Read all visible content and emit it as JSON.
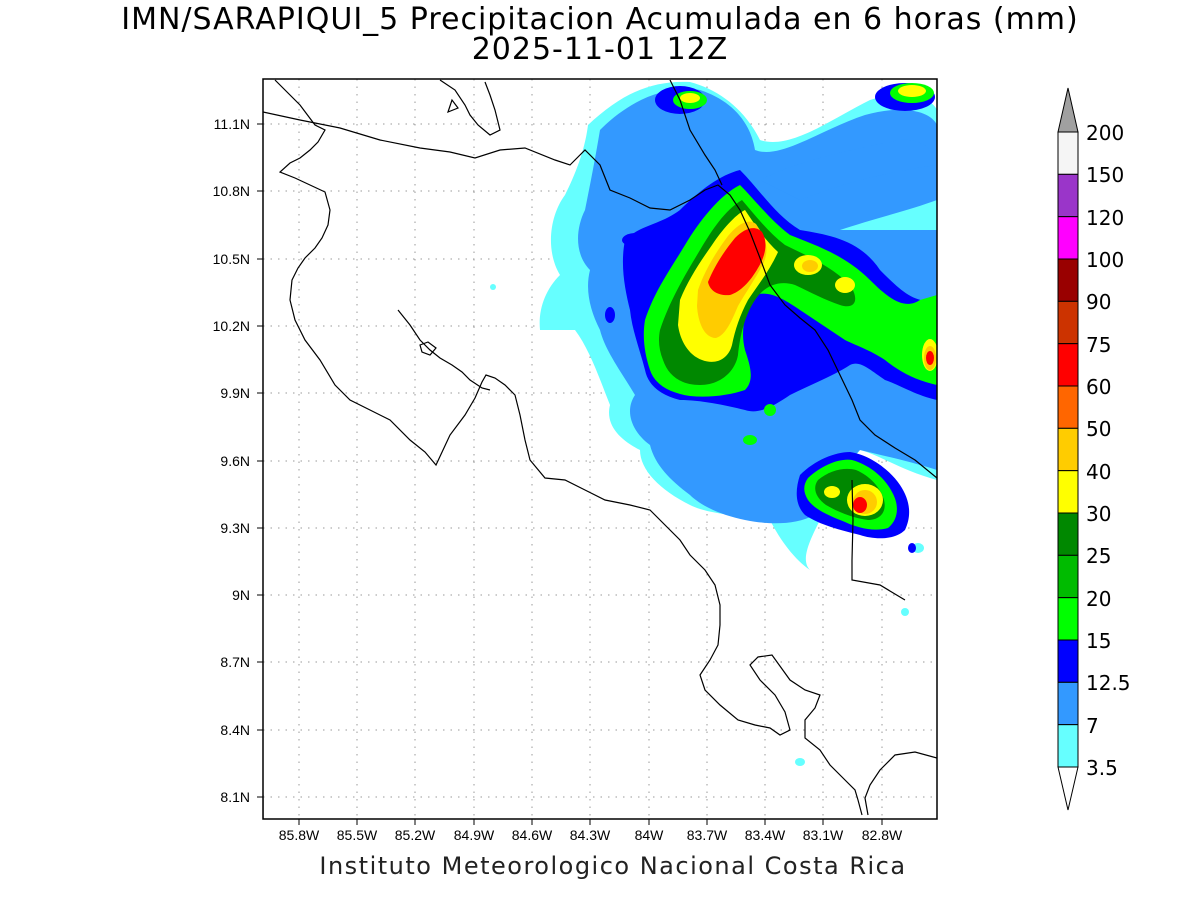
{
  "title": "IMN/SARAPIQUI_5 Precipitacion Acumulada en 6 horas (mm)",
  "subtitle": "2025-11-01 12Z",
  "credit": "Instituto Meteorologico Nacional Costa Rica",
  "lon_labels": [
    "85.8W",
    "85.5W",
    "85.2W",
    "84.9W",
    "84.6W",
    "84.3W",
    "84W",
    "83.7W",
    "83.4W",
    "83.1W",
    "82.8W"
  ],
  "lat_labels": [
    "11.1N",
    "10.8N",
    "10.5N",
    "10.2N",
    "9.9N",
    "9.6N",
    "9.3N",
    "9N",
    "8.7N",
    "8.4N",
    "8.1N"
  ],
  "colorbar": {
    "labels": [
      "200",
      "150",
      "120",
      "100",
      "90",
      "75",
      "60",
      "50",
      "40",
      "30",
      "25",
      "20",
      "15",
      "12.5",
      "7",
      "3.5"
    ],
    "colors": [
      "#f5f5f5",
      "#9a35c9",
      "#ff00ff",
      "#990000",
      "#cc3300",
      "#ff0000",
      "#ff6600",
      "#ffcc00",
      "#ffff00",
      "#008800",
      "#00bb00",
      "#00ff00",
      "#0000ff",
      "#3399ff",
      "#66ffff"
    ],
    "over_color": "#a0a0a0",
    "under_color": "#ffffff"
  }
}
